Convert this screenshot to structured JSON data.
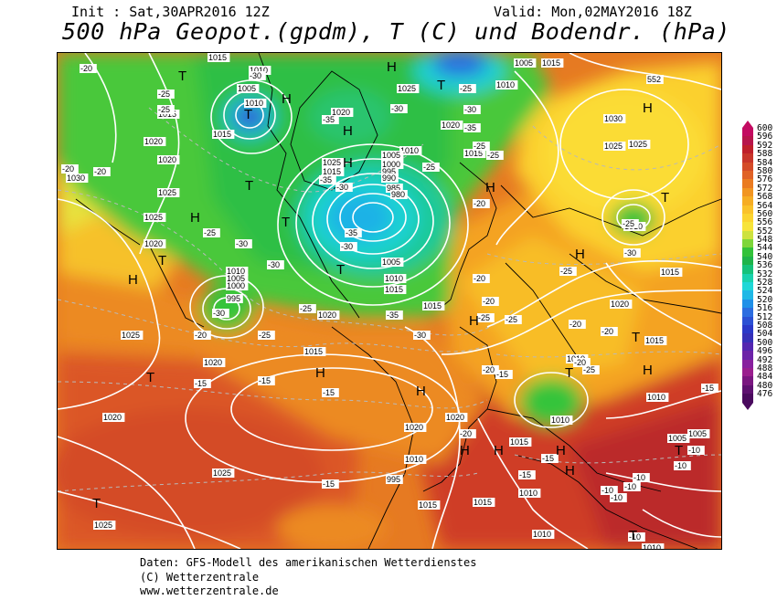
{
  "header": {
    "init": "Init : Sat,30APR2016 12Z",
    "valid": "Valid: Mon,02MAY2016 18Z",
    "title": "500 hPa Geopot.(gpdm), T (C) und Bodendr. (hPa)"
  },
  "colorbar": {
    "labels": [
      "600",
      "596",
      "592",
      "588",
      "584",
      "580",
      "576",
      "572",
      "568",
      "564",
      "560",
      "556",
      "552",
      "548",
      "544",
      "540",
      "536",
      "532",
      "528",
      "524",
      "520",
      "516",
      "512",
      "508",
      "504",
      "500",
      "496",
      "492",
      "488",
      "484",
      "480",
      "476"
    ],
    "colors": [
      "#c30b61",
      "#b7154b",
      "#bf1f2a",
      "#c8352a",
      "#d44b28",
      "#e06226",
      "#ea7b21",
      "#f19522",
      "#f6ad24",
      "#fac22a",
      "#fbd42f",
      "#f7e43a",
      "#cde23f",
      "#7ed63a",
      "#33c23a",
      "#1fb44a",
      "#16c27a",
      "#19d2ad",
      "#1fd7d7",
      "#1fb8e6",
      "#2090e8",
      "#2c6de0",
      "#2b50d4",
      "#2a38c8",
      "#3530b8",
      "#5326b0",
      "#6c23a8",
      "#88209e",
      "#9a1e8e",
      "#7a1680",
      "#5e1070",
      "#4a0a5e"
    ]
  },
  "map_labels": {
    "highs": [
      "H",
      "H",
      "H",
      "H",
      "H",
      "H",
      "H",
      "H",
      "H",
      "H",
      "H",
      "H",
      "H",
      "H",
      "H",
      "H",
      "H"
    ],
    "lows": [
      "T",
      "T",
      "T",
      "T",
      "T",
      "T",
      "T",
      "T",
      "T",
      "T",
      "T",
      "T",
      "T",
      "T"
    ],
    "pressure": [
      "1005",
      "1015",
      "1010",
      "1005",
      "1010",
      "1015",
      "1020",
      "1025",
      "1020",
      "1015",
      "1010",
      "1005",
      "1000",
      "995",
      "990",
      "985",
      "980",
      "1005",
      "1010",
      "1015",
      "1020",
      "1025",
      "1030",
      "1025",
      "1015",
      "1010",
      "1015",
      "1020",
      "1025",
      "1015",
      "1010",
      "1005",
      "1000",
      "995",
      "1025",
      "1020",
      "1030",
      "1025",
      "1020",
      "1015",
      "1010",
      "1020",
      "1020",
      "1025",
      "1020",
      "1015",
      "1010",
      "1025",
      "1005",
      "1010",
      "1015",
      "1010",
      "1010",
      "1015",
      "1020",
      "1005",
      "1010",
      "1015",
      "995",
      "1010",
      "1015",
      "1025",
      "1020",
      "1015",
      "1010",
      "552"
    ],
    "temps": [
      "-20",
      "-25",
      "-25",
      "-30",
      "-35",
      "-35",
      "-30",
      "-25",
      "-30",
      "-35",
      "-30",
      "-35",
      "-30",
      "-25",
      "-25",
      "-20",
      "-20",
      "-20",
      "-25",
      "-30",
      "-30",
      "-25",
      "-25",
      "-30",
      "-35",
      "-30",
      "-25",
      "-15",
      "-15",
      "-15",
      "-20",
      "-20",
      "-20",
      "-25",
      "-20",
      "-15",
      "-15",
      "-10",
      "-10",
      "-10",
      "-10",
      "-15",
      "-10",
      "-10",
      "-10",
      "-15",
      "-20",
      "-25",
      "-20",
      "-20",
      "-25",
      "-25",
      "-30",
      "-25",
      "-15",
      "-20"
    ]
  },
  "footer": {
    "line1": "Daten: GFS-Modell des amerikanischen Wetterdienstes",
    "line2": "(C) Wetterzentrale",
    "line3": "www.wetterzentrale.de"
  }
}
